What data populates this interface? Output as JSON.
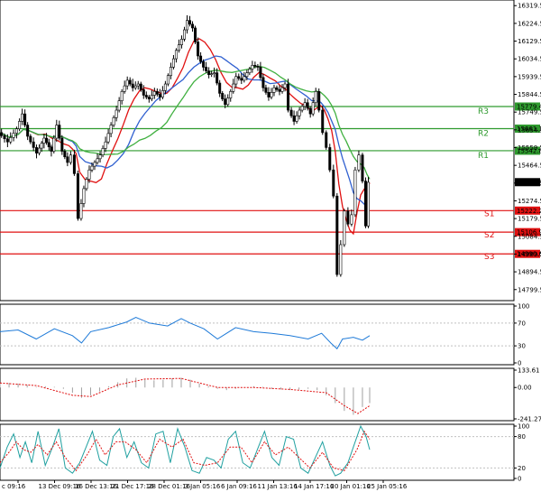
{
  "chart_data": [
    {
      "type": "candlestick",
      "panel": "price",
      "ylim": [
        14750,
        16340
      ],
      "y_ticks": [
        "16319.5",
        "16224.5",
        "16129.5",
        "16034.5",
        "15939.5",
        "15844.5",
        "15749.5",
        "15654.5",
        "15559.5",
        "15464.5",
        "15369.5",
        "15274.5",
        "15179.5",
        "15084.5",
        "14989.5",
        "14894.5",
        "14799.5"
      ],
      "current_price": "15374.5",
      "levels": [
        {
          "label": "R3",
          "value": "15779.4",
          "color": "#2e9a2e"
        },
        {
          "label": "R2",
          "value": "15661.1",
          "color": "#2e9a2e"
        },
        {
          "label": "R1",
          "value": "15542.8",
          "color": "#2e9a2e"
        },
        {
          "label": "S1",
          "value": "15222.2",
          "color": "#e01010"
        },
        {
          "label": "S2",
          "value": "15106.9",
          "color": "#e01010"
        },
        {
          "label": "S3",
          "value": "14990.6",
          "color": "#e01010"
        }
      ],
      "moving_averages": [
        {
          "color": "#e01010"
        },
        {
          "color": "#3060d0"
        },
        {
          "color": "#40b040"
        }
      ],
      "close_path": [
        [
          0,
          15640
        ],
        [
          10,
          15590
        ],
        [
          20,
          15660
        ],
        [
          26,
          15740
        ],
        [
          32,
          15620
        ],
        [
          42,
          15530
        ],
        [
          50,
          15610
        ],
        [
          58,
          15540
        ],
        [
          64,
          15680
        ],
        [
          70,
          15540
        ],
        [
          76,
          15480
        ],
        [
          80,
          15520
        ],
        [
          84,
          15420
        ],
        [
          88,
          15180
        ],
        [
          94,
          15340
        ],
        [
          100,
          15440
        ],
        [
          106,
          15480
        ],
        [
          112,
          15520
        ],
        [
          118,
          15590
        ],
        [
          124,
          15680
        ],
        [
          130,
          15760
        ],
        [
          136,
          15860
        ],
        [
          142,
          15920
        ],
        [
          148,
          15880
        ],
        [
          154,
          15900
        ],
        [
          160,
          15840
        ],
        [
          166,
          15820
        ],
        [
          172,
          15860
        ],
        [
          178,
          15830
        ],
        [
          184,
          15900
        ],
        [
          190,
          15990
        ],
        [
          196,
          16080
        ],
        [
          202,
          16140
        ],
        [
          208,
          16240
        ],
        [
          214,
          16200
        ],
        [
          220,
          16050
        ],
        [
          226,
          15990
        ],
        [
          232,
          15950
        ],
        [
          238,
          15960
        ],
        [
          244,
          15850
        ],
        [
          250,
          15790
        ],
        [
          256,
          15860
        ],
        [
          262,
          15940
        ],
        [
          268,
          15920
        ],
        [
          274,
          15960
        ],
        [
          280,
          16000
        ],
        [
          286,
          15990
        ],
        [
          292,
          15880
        ],
        [
          298,
          15830
        ],
        [
          304,
          15880
        ],
        [
          310,
          15860
        ],
        [
          316,
          15900
        ],
        [
          320,
          15760
        ],
        [
          326,
          15700
        ],
        [
          332,
          15760
        ],
        [
          338,
          15800
        ],
        [
          344,
          15740
        ],
        [
          350,
          15860
        ],
        [
          354,
          15760
        ],
        [
          358,
          15640
        ],
        [
          362,
          15560
        ],
        [
          366,
          15440
        ],
        [
          370,
          15300
        ],
        [
          374,
          14880
        ],
        [
          378,
          15040
        ],
        [
          382,
          15220
        ],
        [
          386,
          15150
        ],
        [
          390,
          15200
        ],
        [
          394,
          15440
        ],
        [
          398,
          15520
        ],
        [
          402,
          15380
        ],
        [
          405,
          15140
        ],
        [
          408,
          15374
        ]
      ],
      "x_ticks": [
        "c 09:16",
        "13 Dec 09:16",
        "16 Dec 13:16",
        "21 Dec 17:16",
        "28 Dec 01:16",
        "3 Jan 05:16",
        "6 Jan 09:16",
        "11 Jan 13:16",
        "14 Jan 17:16",
        "20 Jan 01:16",
        "25 Jan 05:16"
      ]
    },
    {
      "type": "line",
      "panel": "oscillator-1",
      "ylim": [
        0,
        100
      ],
      "y_ticks": [
        "100",
        "70",
        "30",
        "0"
      ],
      "series_color": "#1e7ad8",
      "path": [
        [
          0,
          55
        ],
        [
          20,
          58
        ],
        [
          40,
          42
        ],
        [
          60,
          60
        ],
        [
          80,
          48
        ],
        [
          90,
          35
        ],
        [
          100,
          55
        ],
        [
          120,
          62
        ],
        [
          140,
          72
        ],
        [
          150,
          80
        ],
        [
          165,
          70
        ],
        [
          185,
          65
        ],
        [
          200,
          78
        ],
        [
          210,
          70
        ],
        [
          225,
          60
        ],
        [
          240,
          42
        ],
        [
          260,
          62
        ],
        [
          280,
          55
        ],
        [
          300,
          52
        ],
        [
          320,
          48
        ],
        [
          340,
          42
        ],
        [
          355,
          52
        ],
        [
          365,
          35
        ],
        [
          372,
          25
        ],
        [
          378,
          42
        ],
        [
          390,
          45
        ],
        [
          400,
          40
        ],
        [
          408,
          48
        ]
      ]
    },
    {
      "type": "bar",
      "panel": "oscillator-2",
      "ylim": [
        -241.27,
        133.61
      ],
      "y_ticks": [
        "133.61",
        "0.00",
        "-241.27"
      ],
      "bars": [
        [
          0,
          30
        ],
        [
          10,
          35
        ],
        [
          20,
          30
        ],
        [
          30,
          20
        ],
        [
          40,
          5
        ],
        [
          50,
          10
        ],
        [
          60,
          5
        ],
        [
          70,
          -10
        ],
        [
          80,
          -40
        ],
        [
          90,
          -80
        ],
        [
          100,
          -60
        ],
        [
          110,
          -30
        ],
        [
          120,
          10
        ],
        [
          130,
          40
        ],
        [
          140,
          70
        ],
        [
          150,
          75
        ],
        [
          160,
          60
        ],
        [
          170,
          55
        ],
        [
          180,
          60
        ],
        [
          190,
          70
        ],
        [
          200,
          75
        ],
        [
          210,
          60
        ],
        [
          220,
          30
        ],
        [
          230,
          10
        ],
        [
          240,
          -10
        ],
        [
          250,
          -20
        ],
        [
          260,
          -10
        ],
        [
          270,
          0
        ],
        [
          280,
          10
        ],
        [
          290,
          5
        ],
        [
          300,
          -10
        ],
        [
          310,
          -15
        ],
        [
          320,
          -20
        ],
        [
          330,
          -15
        ],
        [
          340,
          -10
        ],
        [
          350,
          -20
        ],
        [
          360,
          -60
        ],
        [
          370,
          -120
        ],
        [
          380,
          -180
        ],
        [
          390,
          -210
        ],
        [
          400,
          -150
        ],
        [
          408,
          -120
        ]
      ],
      "signal_path": [
        [
          0,
          35
        ],
        [
          40,
          15
        ],
        [
          80,
          -60
        ],
        [
          100,
          -70
        ],
        [
          130,
          20
        ],
        [
          160,
          65
        ],
        [
          200,
          70
        ],
        [
          240,
          0
        ],
        [
          280,
          0
        ],
        [
          320,
          -15
        ],
        [
          360,
          -40
        ],
        [
          380,
          -140
        ],
        [
          395,
          -200
        ],
        [
          408,
          -140
        ]
      ]
    },
    {
      "type": "line",
      "panel": "oscillator-3",
      "ylim": [
        0,
        100
      ],
      "y_ticks": [
        "100",
        "80",
        "20",
        "0"
      ],
      "k_color": "#20a0a0",
      "d_color": "#e01010",
      "k_path": [
        [
          0,
          20
        ],
        [
          8,
          60
        ],
        [
          15,
          85
        ],
        [
          22,
          40
        ],
        [
          28,
          70
        ],
        [
          35,
          30
        ],
        [
          42,
          90
        ],
        [
          50,
          25
        ],
        [
          58,
          60
        ],
        [
          65,
          95
        ],
        [
          72,
          20
        ],
        [
          80,
          10
        ],
        [
          88,
          30
        ],
        [
          95,
          60
        ],
        [
          102,
          90
        ],
        [
          110,
          35
        ],
        [
          118,
          25
        ],
        [
          125,
          80
        ],
        [
          132,
          95
        ],
        [
          140,
          40
        ],
        [
          148,
          70
        ],
        [
          156,
          30
        ],
        [
          164,
          20
        ],
        [
          172,
          85
        ],
        [
          180,
          90
        ],
        [
          188,
          30
        ],
        [
          196,
          95
        ],
        [
          204,
          60
        ],
        [
          212,
          15
        ],
        [
          220,
          10
        ],
        [
          228,
          40
        ],
        [
          236,
          35
        ],
        [
          244,
          20
        ],
        [
          252,
          75
        ],
        [
          260,
          90
        ],
        [
          268,
          30
        ],
        [
          276,
          20
        ],
        [
          284,
          55
        ],
        [
          292,
          90
        ],
        [
          300,
          40
        ],
        [
          308,
          25
        ],
        [
          316,
          80
        ],
        [
          324,
          75
        ],
        [
          332,
          20
        ],
        [
          340,
          10
        ],
        [
          348,
          40
        ],
        [
          356,
          70
        ],
        [
          364,
          25
        ],
        [
          370,
          5
        ],
        [
          376,
          10
        ],
        [
          384,
          30
        ],
        [
          392,
          70
        ],
        [
          398,
          100
        ],
        [
          404,
          80
        ],
        [
          408,
          55
        ]
      ],
      "d_path": [
        [
          0,
          30
        ],
        [
          10,
          50
        ],
        [
          18,
          70
        ],
        [
          26,
          55
        ],
        [
          34,
          50
        ],
        [
          42,
          65
        ],
        [
          52,
          45
        ],
        [
          62,
          70
        ],
        [
          72,
          40
        ],
        [
          84,
          15
        ],
        [
          96,
          45
        ],
        [
          106,
          75
        ],
        [
          116,
          45
        ],
        [
          128,
          70
        ],
        [
          138,
          70
        ],
        [
          150,
          55
        ],
        [
          162,
          30
        ],
        [
          176,
          75
        ],
        [
          190,
          60
        ],
        [
          202,
          75
        ],
        [
          214,
          30
        ],
        [
          226,
          25
        ],
        [
          240,
          30
        ],
        [
          254,
          60
        ],
        [
          266,
          60
        ],
        [
          278,
          30
        ],
        [
          292,
          70
        ],
        [
          304,
          45
        ],
        [
          318,
          60
        ],
        [
          330,
          40
        ],
        [
          342,
          20
        ],
        [
          356,
          50
        ],
        [
          368,
          20
        ],
        [
          380,
          15
        ],
        [
          394,
          55
        ],
        [
          402,
          90
        ],
        [
          408,
          75
        ]
      ]
    }
  ]
}
